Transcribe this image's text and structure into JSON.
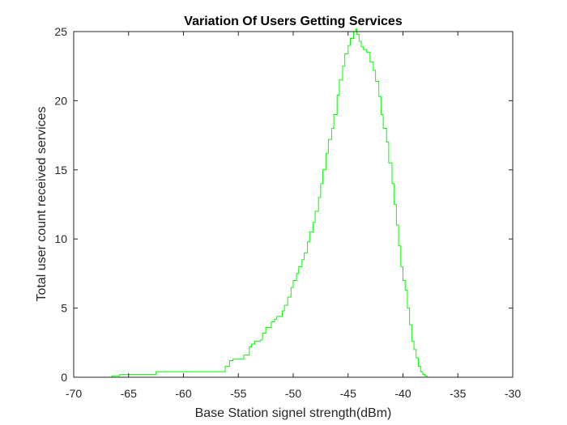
{
  "chart_data": {
    "type": "line",
    "title": "Variation Of Users Getting Services",
    "xlabel": "Base Station signel strength(dBm)",
    "ylabel": "Total user count received services",
    "xlim": [
      -70,
      -30
    ],
    "ylim": [
      0,
      25
    ],
    "xticks": [
      -70,
      -65,
      -60,
      -55,
      -50,
      -45,
      -40,
      -35,
      -30
    ],
    "yticks": [
      0,
      5,
      10,
      15,
      20,
      25
    ],
    "grid": false,
    "box": true,
    "series": [
      {
        "color": "#00ff00",
        "step": true,
        "x": [
          -70,
          -66.5,
          -65.8,
          -63,
          -62.5,
          -56.5,
          -56.2,
          -55.8,
          -55.5,
          -55,
          -54.5,
          -54,
          -53.8,
          -53.5,
          -53,
          -52.8,
          -52.5,
          -52,
          -51.7,
          -51.5,
          -51,
          -50.8,
          -50.5,
          -50.2,
          -50,
          -49.7,
          -49.5,
          -49.2,
          -49,
          -48.7,
          -48.5,
          -48.2,
          -48,
          -47.7,
          -47.5,
          -47.3,
          -47,
          -46.8,
          -46.5,
          -46.3,
          -46,
          -45.8,
          -45.5,
          -45.3,
          -45,
          -44.8,
          -44.5,
          -44.3,
          -44.2,
          -44,
          -43.8,
          -43.6,
          -43.3,
          -43,
          -42.7,
          -42.5,
          -42.2,
          -42,
          -41.8,
          -41.5,
          -41.3,
          -41,
          -40.8,
          -40.6,
          -40.4,
          -40.2,
          -40,
          -39.8,
          -39.6,
          -39.4,
          -39.2,
          -39,
          -38.8,
          -38.6,
          -38.4,
          -38.2,
          -38,
          -37.8,
          -37.6,
          -37.4,
          -37,
          -30
        ],
        "y": [
          0,
          0.1,
          0.2,
          0.2,
          0.4,
          0.4,
          0.8,
          1.2,
          1.3,
          1.3,
          1.6,
          2.2,
          2.4,
          2.6,
          2.7,
          3.2,
          3.6,
          4,
          4.2,
          4.4,
          4.8,
          5.2,
          5.8,
          6.5,
          7,
          7.5,
          8,
          8.5,
          9,
          9.8,
          10.5,
          11.2,
          12,
          13,
          14,
          15,
          16.2,
          17.2,
          18,
          19,
          20.4,
          21.5,
          22.5,
          23.4,
          24,
          24.5,
          25,
          25.2,
          24.8,
          24.3,
          23.9,
          23.7,
          23.5,
          22.8,
          22.2,
          21.4,
          20.3,
          19,
          18,
          17,
          15.5,
          14,
          12.5,
          11,
          9.5,
          8,
          7,
          6.3,
          5,
          3.8,
          2.6,
          2,
          1.4,
          0.8,
          0.4,
          0.2,
          0.1,
          0,
          0,
          0,
          0,
          0
        ]
      }
    ]
  }
}
